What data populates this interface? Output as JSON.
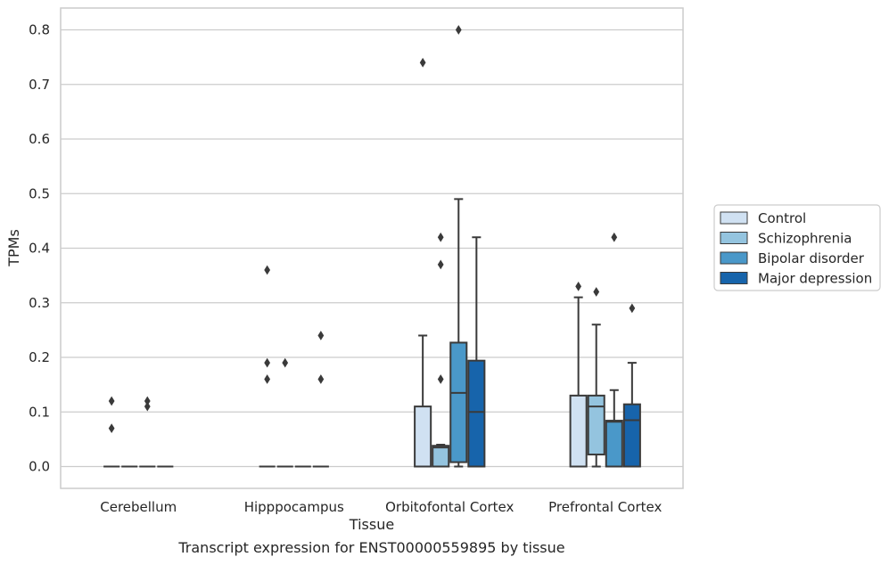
{
  "chart_data": {
    "type": "box",
    "title": "",
    "caption": "Transcript expression for ENST00000559895 by tissue",
    "xlabel": "Tissue",
    "ylabel": "TPMs",
    "ylim": [
      -0.04,
      0.84
    ],
    "yticks": [
      0.0,
      0.1,
      0.2,
      0.3,
      0.4,
      0.5,
      0.6,
      0.7,
      0.8
    ],
    "grid": "horizontal",
    "legend_position": "right",
    "categories": [
      "Cerebellum",
      "Hipppocampus",
      "Orbitofontal Cortex",
      "Prefrontal Cortex"
    ],
    "series": [
      {
        "name": "Control",
        "color": "#d0e1f2",
        "boxes": [
          {
            "q1": 0,
            "median": 0,
            "q3": 0,
            "whisker_low": 0,
            "whisker_high": 0,
            "outliers": [
              0.12,
              0.07
            ]
          },
          {
            "q1": 0,
            "median": 0,
            "q3": 0,
            "whisker_low": 0,
            "whisker_high": 0,
            "outliers": [
              0.36,
              0.19,
              0.16
            ]
          },
          {
            "q1": 0,
            "median": 0,
            "q3": 0.11,
            "whisker_low": 0,
            "whisker_high": 0.24,
            "outliers": [
              0.74
            ]
          },
          {
            "q1": 0,
            "median": 0,
            "q3": 0.13,
            "whisker_low": 0,
            "whisker_high": 0.31,
            "outliers": [
              0.33
            ]
          }
        ]
      },
      {
        "name": "Schizophrenia",
        "color": "#94c4df",
        "boxes": [
          {
            "q1": 0,
            "median": 0,
            "q3": 0,
            "whisker_low": 0,
            "whisker_high": 0,
            "outliers": []
          },
          {
            "q1": 0,
            "median": 0,
            "q3": 0,
            "whisker_low": 0,
            "whisker_high": 0,
            "outliers": [
              0.19
            ]
          },
          {
            "q1": 0,
            "median": 0.035,
            "q3": 0.038,
            "whisker_low": 0,
            "whisker_high": 0.04,
            "outliers": [
              0.42,
              0.37,
              0.16
            ]
          },
          {
            "q1": 0.022,
            "median": 0.11,
            "q3": 0.13,
            "whisker_low": 0,
            "whisker_high": 0.26,
            "outliers": [
              0.32
            ]
          }
        ]
      },
      {
        "name": "Bipolar disorder",
        "color": "#4a98c9",
        "boxes": [
          {
            "q1": 0,
            "median": 0,
            "q3": 0,
            "whisker_low": 0,
            "whisker_high": 0,
            "outliers": [
              0.12,
              0.11
            ]
          },
          {
            "q1": 0,
            "median": 0,
            "q3": 0,
            "whisker_low": 0,
            "whisker_high": 0,
            "outliers": []
          },
          {
            "q1": 0.008,
            "median": 0.135,
            "q3": 0.227,
            "whisker_low": 0,
            "whisker_high": 0.49,
            "outliers": [
              0.8
            ]
          },
          {
            "q1": 0,
            "median": 0.082,
            "q3": 0.084,
            "whisker_low": 0,
            "whisker_high": 0.14,
            "outliers": [
              0.42
            ]
          }
        ]
      },
      {
        "name": "Major depression",
        "color": "#1764ab",
        "boxes": [
          {
            "q1": 0,
            "median": 0,
            "q3": 0,
            "whisker_low": 0,
            "whisker_high": 0,
            "outliers": []
          },
          {
            "q1": 0,
            "median": 0,
            "q3": 0,
            "whisker_low": 0,
            "whisker_high": 0,
            "outliers": [
              0.24,
              0.16
            ]
          },
          {
            "q1": 0,
            "median": 0.1,
            "q3": 0.194,
            "whisker_low": 0,
            "whisker_high": 0.42,
            "outliers": []
          },
          {
            "q1": 0,
            "median": 0.085,
            "q3": 0.114,
            "whisker_low": 0,
            "whisker_high": 0.19,
            "outliers": [
              0.29
            ]
          }
        ]
      }
    ],
    "colors": {
      "grid": "#cccccc",
      "frame": "#cccccc",
      "box_edge": "#3a3a3a",
      "legend_border": "#cccccc"
    }
  }
}
